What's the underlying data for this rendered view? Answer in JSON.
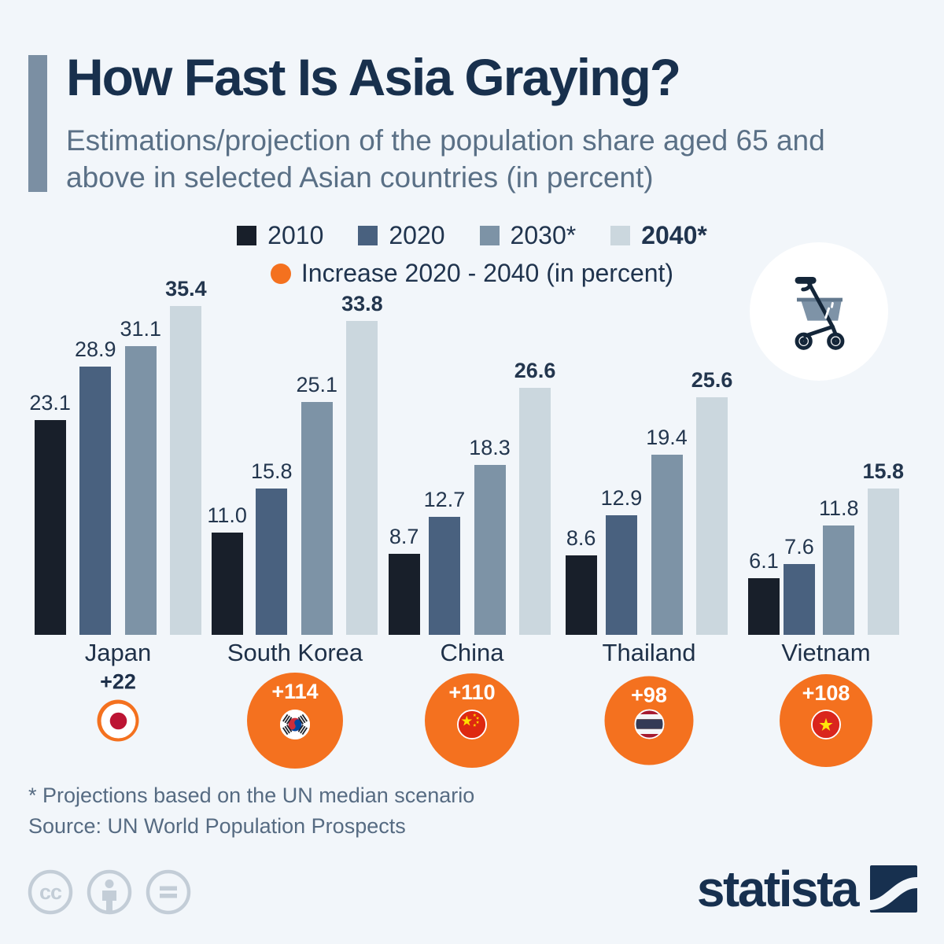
{
  "header": {
    "title": "How Fast Is Asia Graying?",
    "subtitle": "Estimations/projection of the population share aged 65 and above in selected Asian countries (in percent)"
  },
  "legend": {
    "series": [
      {
        "label": "2010",
        "color": "#181f2a"
      },
      {
        "label": "2020",
        "color": "#49617f"
      },
      {
        "label": "2030*",
        "color": "#7d93a6"
      },
      {
        "label": "2040*",
        "color": "#cbd7de"
      }
    ],
    "increase_label": "Increase 2020 - 2040 (in percent)",
    "increase_color": "#f4711f"
  },
  "chart_data": {
    "type": "bar",
    "title": "How Fast Is Asia Graying?",
    "unit": "percent of population aged 65 and above",
    "categories": [
      "Japan",
      "South Korea",
      "China",
      "Thailand",
      "Vietnam"
    ],
    "series": [
      {
        "name": "2010",
        "color": "#181f2a",
        "values": [
          23.1,
          11.0,
          8.7,
          8.6,
          6.1
        ]
      },
      {
        "name": "2020",
        "color": "#49617f",
        "values": [
          28.9,
          15.8,
          12.7,
          12.9,
          7.6
        ]
      },
      {
        "name": "2030*",
        "color": "#7d93a6",
        "values": [
          31.1,
          25.1,
          18.3,
          19.4,
          11.8
        ]
      },
      {
        "name": "2040*",
        "color": "#cbd7de",
        "values": [
          35.4,
          33.8,
          26.6,
          25.6,
          15.8
        ]
      }
    ],
    "increase_2020_2040": {
      "name": "Increase 2020 - 2040 (in percent)",
      "color": "#f4711f",
      "values": [
        22,
        114,
        110,
        98,
        108
      ],
      "labels": [
        "+22",
        "+114",
        "+110",
        "+98",
        "+108"
      ]
    },
    "value_labels_bold_series": "2040*",
    "grid": false,
    "value_axis_visible": false,
    "legend_position": "top",
    "footnote": "* Projections based on the UN median scenario"
  },
  "icons": {
    "hero": "rollator-walker-icon",
    "flags": [
      "japan-flag-icon",
      "south-korea-flag-icon",
      "china-flag-icon",
      "thailand-flag-icon",
      "vietnam-flag-icon"
    ],
    "footer": [
      "cc-icon",
      "attribution-person-icon",
      "equal-sign-icon",
      "statista-logo-mark-icon"
    ]
  },
  "footer": {
    "note": "* Projections based on the UN median scenario",
    "source": "Source: UN World Population Prospects",
    "brand": "statista"
  },
  "colors": {
    "background": "#f2f6fa",
    "accent_bar": "#7b8fa3",
    "title": "#18304d",
    "subtitle": "#5a7086",
    "orange": "#f4711f",
    "footer_icons": "#c3cdd7"
  }
}
